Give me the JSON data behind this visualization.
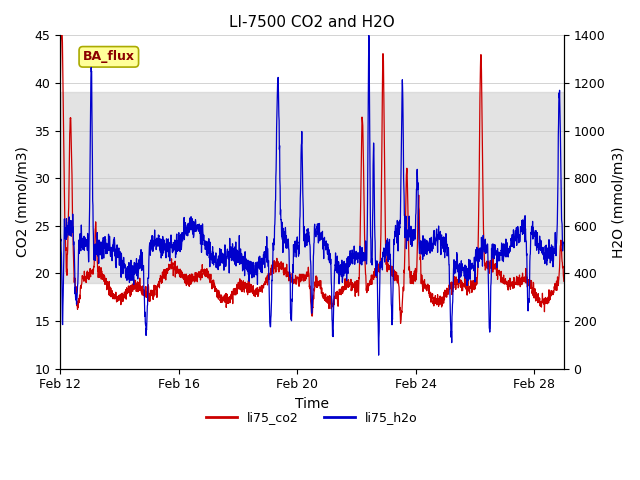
{
  "title": "LI-7500 CO2 and H2O",
  "xlabel": "Time",
  "ylabel_left": "CO2 (mmol/m3)",
  "ylabel_right": "H2O (mmol/m3)",
  "ylim_left": [
    10,
    45
  ],
  "ylim_right": [
    0,
    1400
  ],
  "yticks_left": [
    10,
    15,
    20,
    25,
    30,
    35,
    40,
    45
  ],
  "yticks_right": [
    0,
    200,
    400,
    600,
    800,
    1000,
    1200,
    1400
  ],
  "xtick_labels": [
    "Feb 12",
    "Feb 16",
    "Feb 20",
    "Feb 24",
    "Feb 28"
  ],
  "xtick_positions": [
    0,
    4,
    8,
    12,
    16
  ],
  "color_co2": "#cc0000",
  "color_h2o": "#0000cc",
  "legend_label_co2": "li75_co2",
  "legend_label_h2o": "li75_h2o",
  "annotation_text": "BA_flux",
  "bg_band_upper_ymin": 29,
  "bg_band_upper_ymax": 39,
  "bg_band_lower_ymin": 19,
  "bg_band_lower_ymax": 29,
  "title_fontsize": 11,
  "axis_fontsize": 10,
  "tick_fontsize": 9,
  "n_points": 2000
}
